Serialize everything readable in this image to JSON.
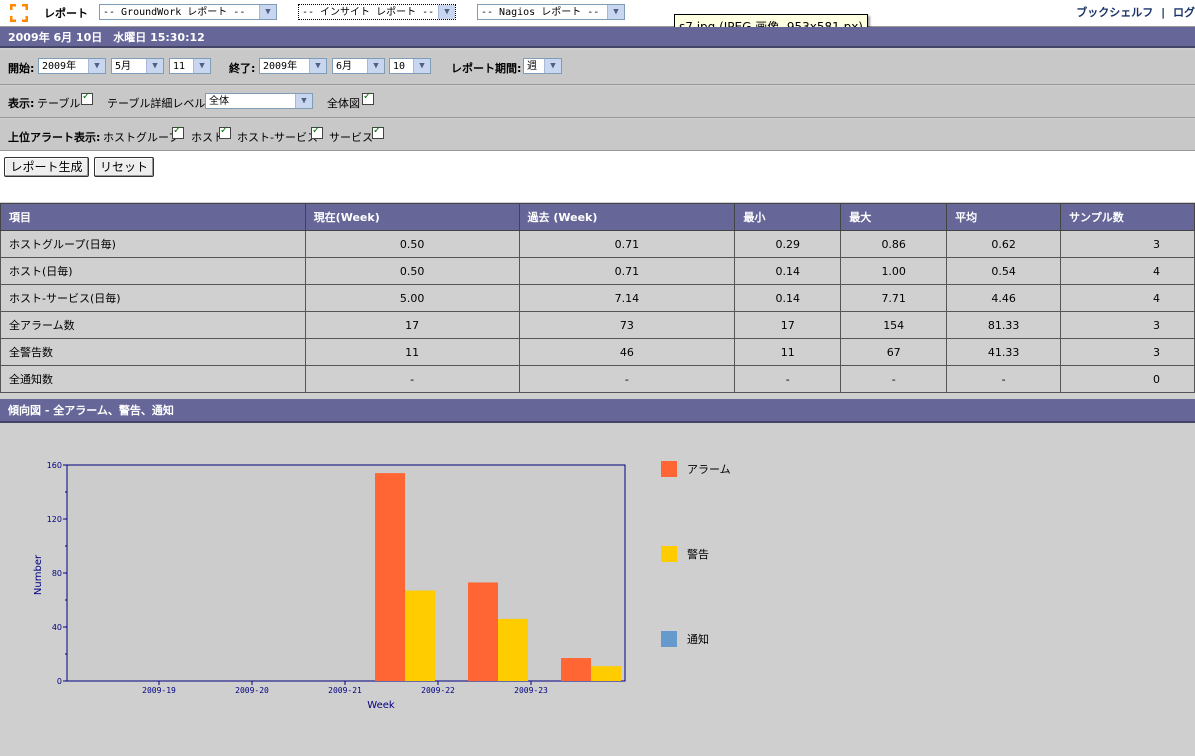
{
  "toolbar": {
    "menu_label": "レポート",
    "groundwork_select": "-- GroundWork レポート --",
    "insight_select": "-- インサイト レポート --",
    "nagios_select": "-- Nagios レポート --",
    "bookshelf": "ブックシェルフ",
    "separator": "|",
    "logout": "ログ"
  },
  "tooltip": "s7.jpg (JPEG 画像, 953x581 px)",
  "datetime": "2009年 6月 10日　水曜日 15:30:12",
  "range": {
    "start_label": "開始:",
    "start_year": "2009年",
    "start_month": "5月",
    "start_day": "11",
    "end_label": "終了:",
    "end_year": "2009年",
    "end_month": "6月",
    "end_day": "10",
    "period_label": "レポート期間:",
    "period_value": "週"
  },
  "display": {
    "label": "表示:",
    "table_label": "テーブル",
    "detail_label": "テーブル詳細レベル",
    "detail_value": "全体",
    "overview_label": "全体図"
  },
  "top_alerts": {
    "label": "上位アラート表示:",
    "hostgroup": "ホストグループ",
    "host": "ホスト",
    "host_service": "ホスト-サービス",
    "service": "サービス"
  },
  "buttons": {
    "generate": "レポート生成",
    "reset": "リセット"
  },
  "table": {
    "headers": [
      "項目",
      "現在(Week)",
      "過去 (Week)",
      "最小",
      "最大",
      "平均",
      "サンプル数"
    ],
    "rows": [
      [
        "ホストグループ(日毎)",
        "0.50",
        "0.71",
        "0.29",
        "0.86",
        "0.62",
        "3"
      ],
      [
        "ホスト(日毎)",
        "0.50",
        "0.71",
        "0.14",
        "1.00",
        "0.54",
        "4"
      ],
      [
        "ホスト-サービス(日毎)",
        "5.00",
        "7.14",
        "0.14",
        "7.71",
        "4.46",
        "4"
      ],
      [
        "全アラーム数",
        "17",
        "73",
        "17",
        "154",
        "81.33",
        "3"
      ],
      [
        "全警告数",
        "11",
        "46",
        "11",
        "67",
        "41.33",
        "3"
      ],
      [
        "全通知数",
        "-",
        "-",
        "-",
        "-",
        "-",
        "0"
      ]
    ]
  },
  "trend_title": "傾向図 - 全アラーム、警告、通知",
  "colors": {
    "alarm": "#ff6633",
    "warning": "#ffcc00",
    "notify": "#6699cc",
    "header_bg": "#666699",
    "axis": "#000080"
  },
  "chart_data": {
    "type": "bar",
    "categories": [
      "2009-19",
      "2009-20",
      "2009-21",
      "2009-22",
      "2009-23"
    ],
    "series": [
      {
        "name": "アラーム",
        "values": [
          0,
          0,
          154,
          73,
          17
        ]
      },
      {
        "name": "警告",
        "values": [
          0,
          0,
          67,
          46,
          11
        ]
      },
      {
        "name": "通知",
        "values": [
          0,
          0,
          0,
          0,
          0
        ]
      }
    ],
    "xlabel": "Week",
    "ylabel": "Number",
    "ylim": [
      0,
      160
    ],
    "yticks": [
      0,
      40,
      80,
      120,
      160
    ],
    "legend_position": "right"
  }
}
